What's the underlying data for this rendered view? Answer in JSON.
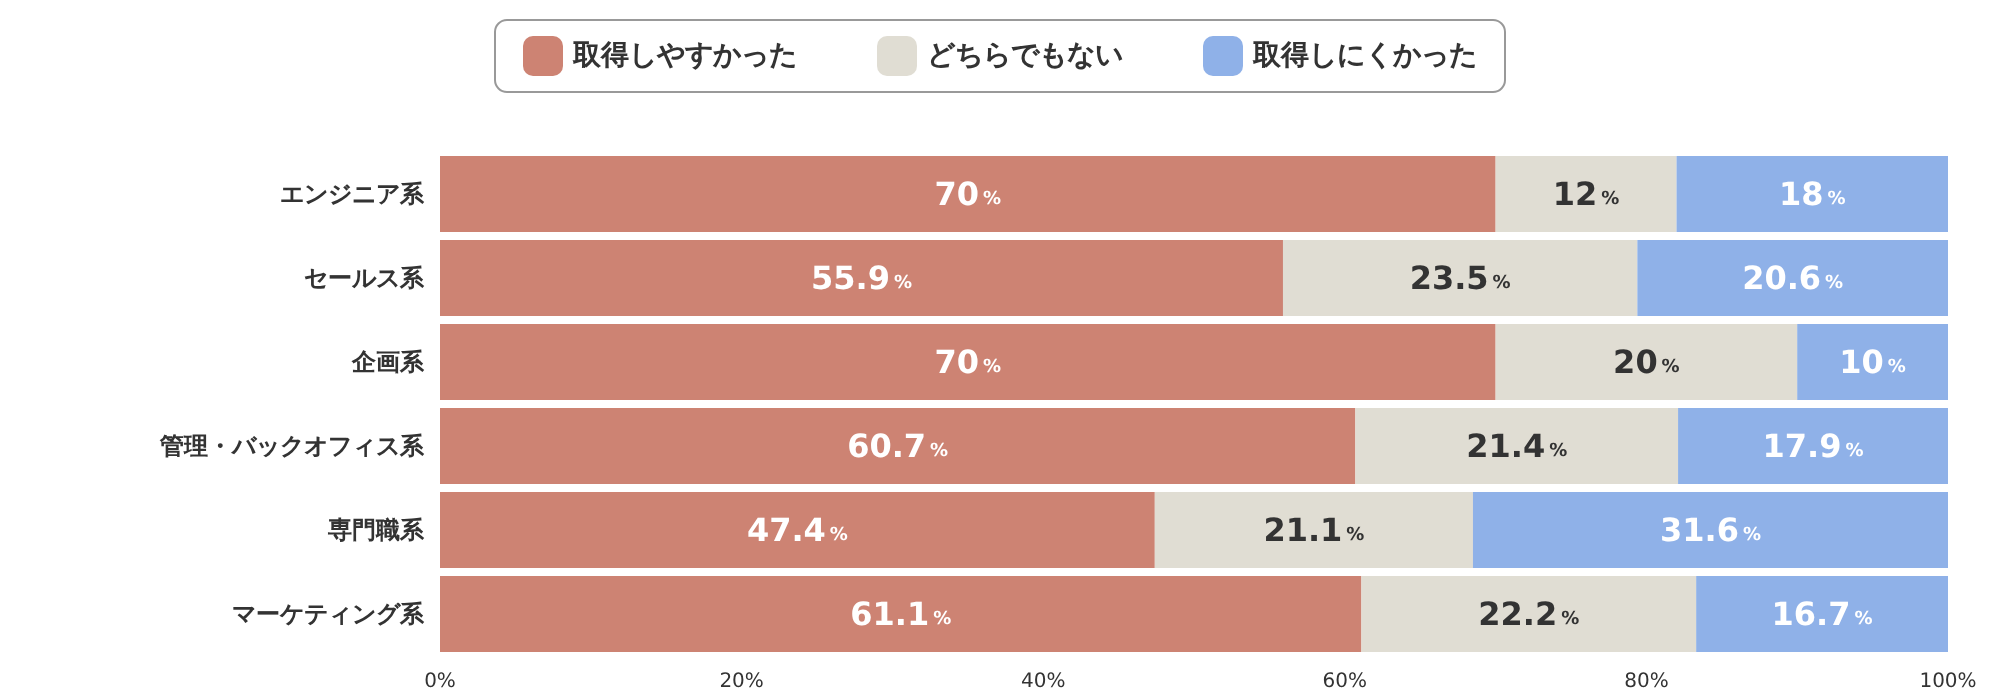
{
  "chart_data": {
    "type": "bar",
    "orientation": "horizontal",
    "stacked": true,
    "categories": [
      "エンジニア系",
      "セールス系",
      "企画系",
      "管理・バックオフィス系",
      "専門職系",
      "マーケティング系"
    ],
    "series": [
      {
        "name": "取得しやすかった",
        "color": "#cd8373",
        "values": [
          70,
          55.9,
          70,
          60.7,
          47.4,
          61.1
        ],
        "value_labels": [
          "70%",
          "55.9%",
          "70%",
          "60.7%",
          "47.4%",
          "61.1%"
        ]
      },
      {
        "name": "どちらでもない",
        "color": "#e0ddd3",
        "values": [
          12,
          23.5,
          20,
          21.4,
          21.1,
          22.2
        ],
        "value_labels": [
          "12%",
          "23.5%",
          "20%",
          "21.4%",
          "21.1%",
          "22.2%"
        ]
      },
      {
        "name": "取得しにくかった",
        "color": "#8fb1e8",
        "values": [
          18,
          20.6,
          10,
          17.9,
          31.6,
          16.7
        ],
        "value_labels": [
          "18%",
          "20.6%",
          "10%",
          "17.9%",
          "31.6%",
          "16.7%"
        ]
      }
    ],
    "xlim": [
      0,
      100
    ],
    "xticks": [
      {
        "value": 0,
        "label": "0%"
      },
      {
        "value": 20,
        "label": "20%"
      },
      {
        "value": 40,
        "label": "40%"
      },
      {
        "value": 60,
        "label": "60%"
      },
      {
        "value": 80,
        "label": "80%"
      },
      {
        "value": 100,
        "label": "100%"
      }
    ],
    "grid": false,
    "legend": "top"
  }
}
